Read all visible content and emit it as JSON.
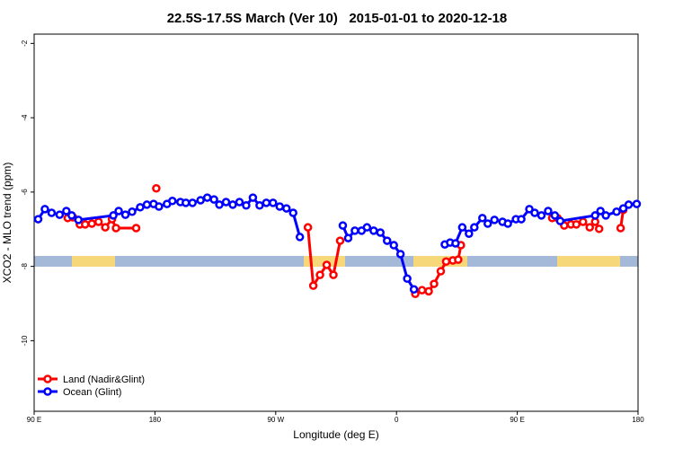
{
  "chart_data": {
    "type": "line",
    "title": "22.5S-17.5S March (Ver 10)   2015-01-01 to 2020-12-18",
    "x_label": "Longitude (deg E)",
    "y_label": "XCO2 - MLO trend (ppm)",
    "xlim": [
      90,
      540
    ],
    "xticks": [
      {
        "value": 90,
        "label": "90 E"
      },
      {
        "value": 180,
        "label": "180"
      },
      {
        "value": 270,
        "label": "90 W"
      },
      {
        "value": 360,
        "label": "0"
      },
      {
        "value": 450,
        "label": "90 E"
      },
      {
        "value": 540,
        "label": "180"
      }
    ],
    "ylim": [
      -11.9,
      -1.75
    ],
    "yticks": [
      -2,
      -4,
      -6,
      -8,
      -10
    ],
    "legend": "lower left",
    "series": [
      {
        "name": "Land (Nadir&Glint)",
        "color": "#ff0000",
        "x": [
          115,
          119,
          124,
          128,
          133,
          138,
          143,
          148,
          151,
          166,
          null,
          181,
          null,
          294,
          298,
          303,
          308,
          313,
          318,
          null,
          374,
          379,
          384,
          388,
          393,
          397,
          402,
          406,
          408,
          null,
          476,
          480,
          485,
          490,
          494,
          499,
          504,
          508,
          511,
          null,
          527,
          529
        ],
        "values": [
          -6.7,
          -6.68,
          -6.87,
          -6.87,
          -6.85,
          -6.8,
          -6.95,
          -6.73,
          -6.97,
          -6.97,
          null,
          -5.9,
          null,
          -6.95,
          -8.52,
          -8.23,
          -7.96,
          -8.23,
          -7.31,
          null,
          -8.74,
          -8.64,
          -8.67,
          -8.47,
          -8.13,
          -7.87,
          -7.84,
          -7.82,
          -7.43,
          null,
          -6.7,
          -6.7,
          -6.9,
          -6.87,
          -6.87,
          -6.8,
          -6.95,
          -6.8,
          -6.99,
          null,
          -6.97,
          -6.48
        ]
      },
      {
        "name": "Ocean (Glint)",
        "color": "#0000ff",
        "x": [
          93,
          98,
          103,
          109,
          114,
          118,
          123,
          149,
          153,
          158,
          163,
          169,
          174,
          179,
          183,
          189,
          193,
          199,
          203,
          208,
          214,
          219,
          224,
          228,
          233,
          238,
          243,
          248,
          253,
          258,
          263,
          268,
          273,
          278,
          283,
          288,
          null,
          320,
          324,
          329,
          334,
          338,
          343,
          348,
          353,
          358,
          363,
          368,
          373,
          null,
          396,
          400,
          404,
          409,
          414,
          418,
          424,
          428,
          433,
          439,
          443,
          449,
          453,
          459,
          463,
          468,
          473,
          478,
          482,
          508,
          512,
          516,
          524,
          529,
          533,
          539
        ],
        "values": [
          -6.73,
          -6.46,
          -6.56,
          -6.61,
          -6.51,
          -6.63,
          -6.75,
          -6.63,
          -6.51,
          -6.61,
          -6.53,
          -6.41,
          -6.34,
          -6.32,
          -6.39,
          -6.32,
          -6.24,
          -6.27,
          -6.29,
          -6.29,
          -6.22,
          -6.15,
          -6.2,
          -6.34,
          -6.27,
          -6.34,
          -6.27,
          -6.36,
          -6.15,
          -6.36,
          -6.29,
          -6.29,
          -6.39,
          -6.44,
          -6.56,
          -7.21,
          null,
          -6.9,
          -7.24,
          -7.04,
          -7.04,
          -6.95,
          -7.04,
          -7.09,
          -7.31,
          -7.43,
          -7.67,
          -8.33,
          -8.62,
          null,
          -7.41,
          -7.36,
          -7.38,
          -6.95,
          -7.12,
          -6.95,
          -6.7,
          -6.85,
          -6.75,
          -6.8,
          -6.85,
          -6.73,
          -6.73,
          -6.46,
          -6.56,
          -6.63,
          -6.51,
          -6.63,
          -6.78,
          -6.63,
          -6.51,
          -6.63,
          -6.53,
          -6.44,
          -6.34,
          -6.32
        ]
      }
    ]
  }
}
